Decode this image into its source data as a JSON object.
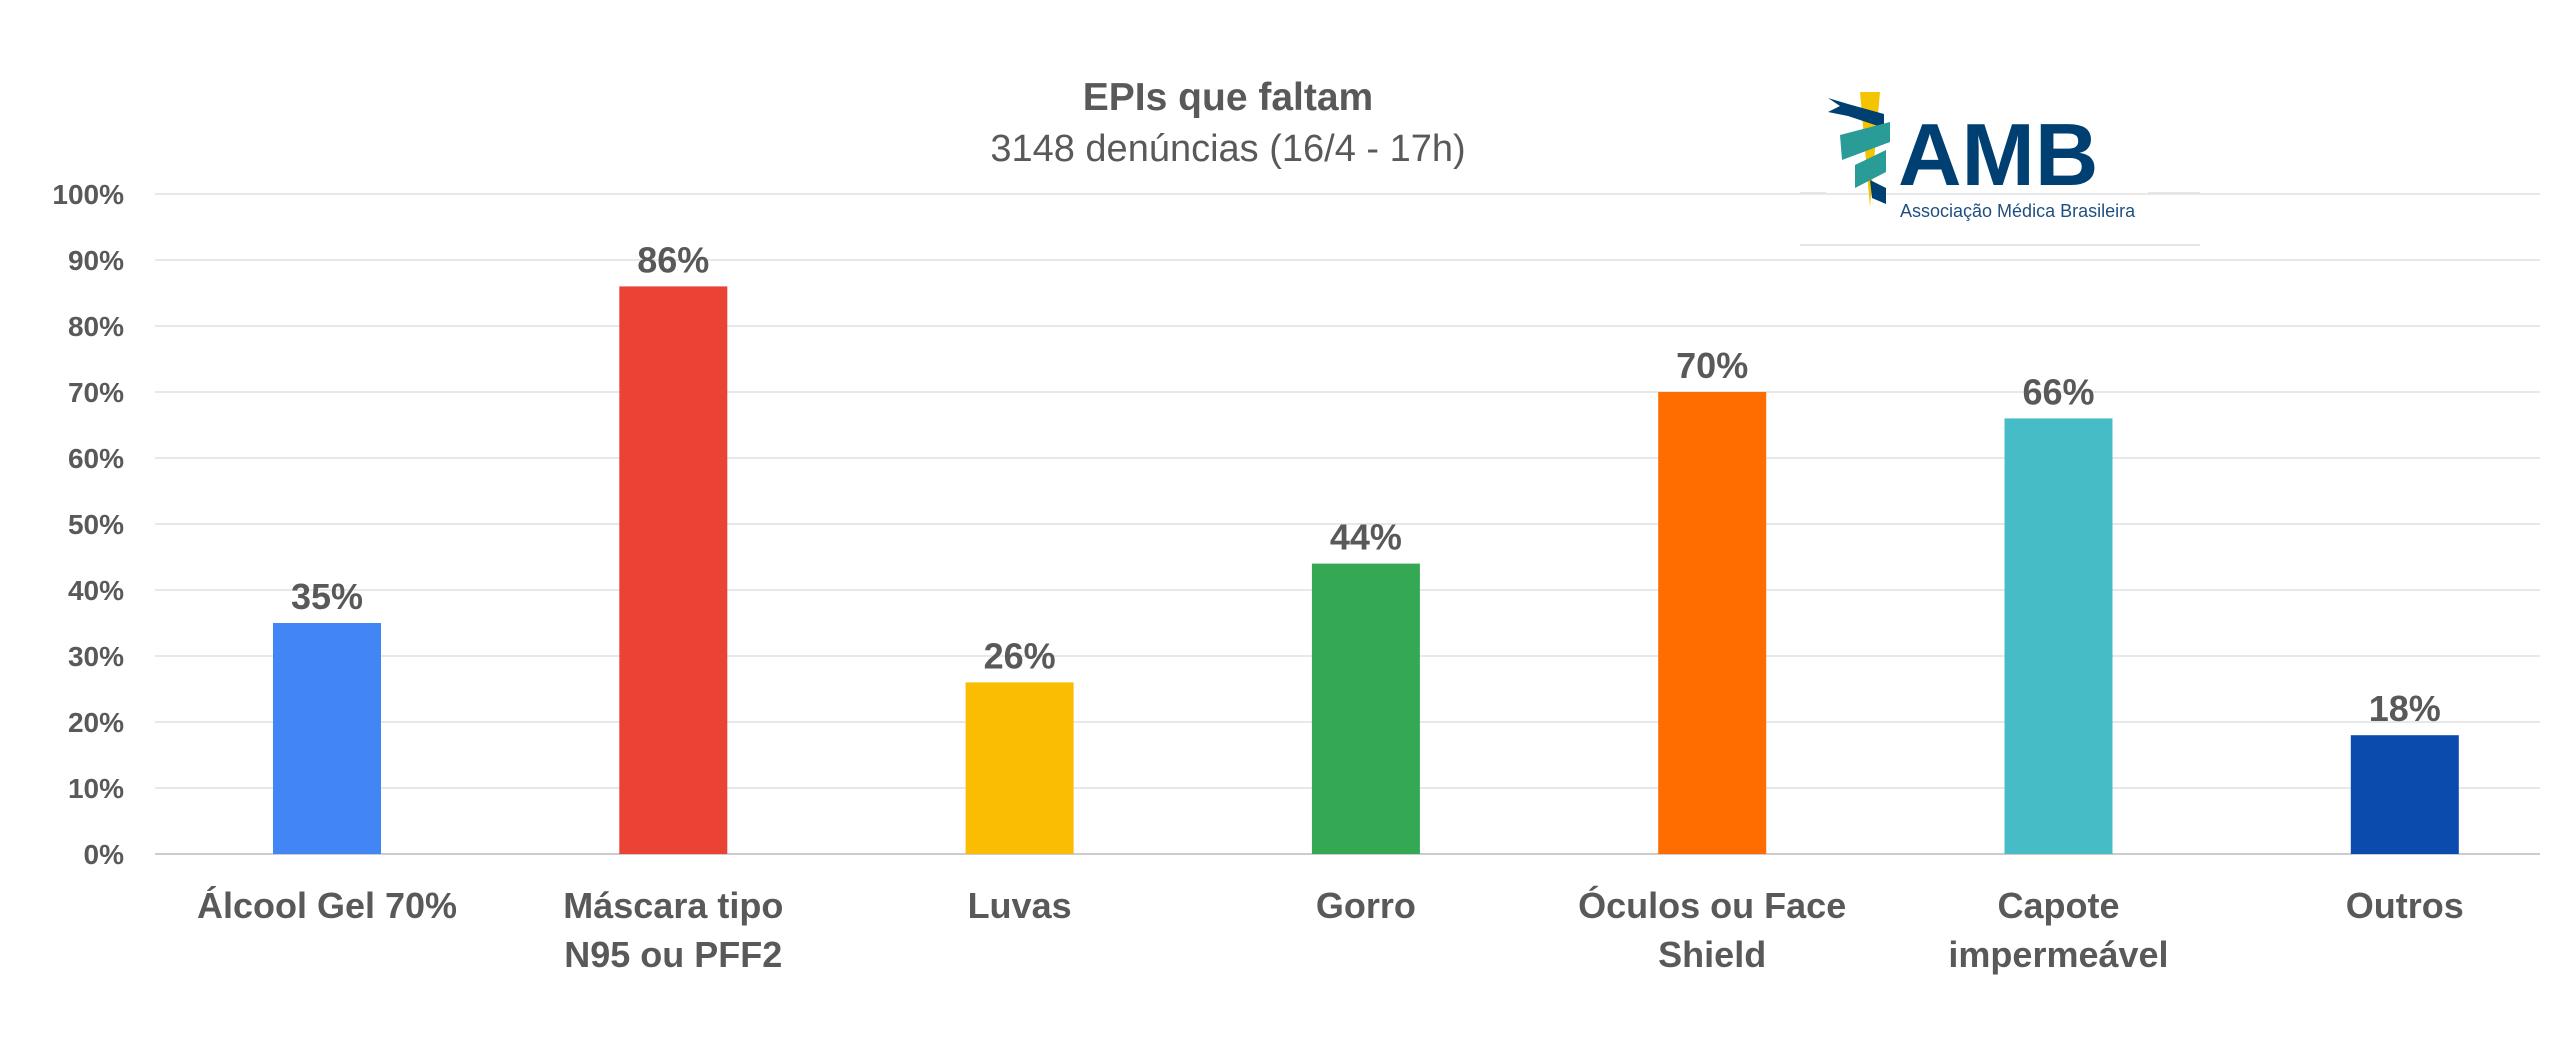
{
  "chart_data": {
    "type": "bar",
    "title": "EPIs que faltam",
    "subtitle": "3148 denúncias (16/4 - 17h)",
    "categories": [
      [
        "Álcool Gel 70%"
      ],
      [
        "Máscara tipo",
        "N95 ou PFF2"
      ],
      [
        "Luvas"
      ],
      [
        "Gorro"
      ],
      [
        "Óculos ou Face",
        "Shield"
      ],
      [
        "Capote",
        "impermeável"
      ],
      [
        "Outros"
      ]
    ],
    "values": [
      35,
      86,
      26,
      44,
      70,
      66,
      18
    ],
    "data_labels": [
      "35%",
      "86%",
      "26%",
      "44%",
      "70%",
      "66%",
      "18%"
    ],
    "colors": [
      "#4285F4",
      "#EA4335",
      "#FBBC04",
      "#34A853",
      "#FF6D01",
      "#46BDC6",
      "#0B4BAD"
    ],
    "ylim": [
      0,
      100
    ],
    "yticks": [
      0,
      10,
      20,
      30,
      40,
      50,
      60,
      70,
      80,
      90,
      100
    ],
    "ytick_labels": [
      "0%",
      "10%",
      "20%",
      "30%",
      "40%",
      "50%",
      "60%",
      "70%",
      "80%",
      "90%",
      "100%"
    ],
    "xlabel": "",
    "ylabel": "",
    "grid": true,
    "legend": "none"
  },
  "logo": {
    "name": "AMB",
    "tagline": "Associação Médica Brasileira"
  }
}
